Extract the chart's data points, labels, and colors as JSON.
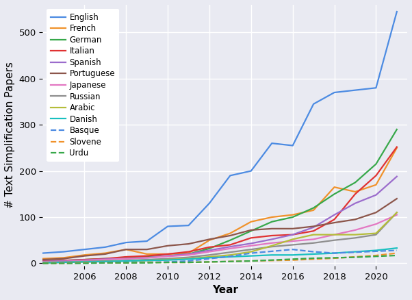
{
  "years": [
    2004,
    2005,
    2006,
    2007,
    2008,
    2009,
    2010,
    2011,
    2012,
    2013,
    2014,
    2015,
    2016,
    2017,
    2018,
    2019,
    2020,
    2021
  ],
  "series": {
    "English": [
      22,
      25,
      30,
      35,
      45,
      48,
      80,
      82,
      130,
      190,
      200,
      260,
      255,
      345,
      370,
      375,
      380,
      545
    ],
    "French": [
      10,
      12,
      18,
      22,
      30,
      20,
      20,
      22,
      50,
      65,
      90,
      100,
      105,
      115,
      165,
      155,
      170,
      250
    ],
    "German": [
      5,
      6,
      8,
      10,
      12,
      14,
      16,
      20,
      32,
      50,
      70,
      90,
      100,
      120,
      150,
      175,
      215,
      290
    ],
    "Italian": [
      5,
      6,
      8,
      10,
      14,
      16,
      20,
      25,
      35,
      40,
      55,
      60,
      62,
      70,
      95,
      150,
      190,
      252
    ],
    "Spanish": [
      4,
      5,
      7,
      9,
      10,
      12,
      16,
      20,
      28,
      36,
      43,
      52,
      62,
      78,
      105,
      130,
      148,
      188
    ],
    "Portuguese": [
      8,
      10,
      16,
      20,
      30,
      30,
      38,
      42,
      52,
      60,
      72,
      75,
      75,
      80,
      88,
      95,
      110,
      140
    ],
    "Japanese": [
      3,
      4,
      6,
      8,
      10,
      12,
      15,
      18,
      25,
      32,
      38,
      44,
      48,
      52,
      62,
      72,
      85,
      105
    ],
    "Russian": [
      2,
      3,
      4,
      5,
      6,
      8,
      10,
      13,
      18,
      24,
      30,
      36,
      40,
      44,
      50,
      55,
      62,
      110
    ],
    "Arabic": [
      1,
      2,
      3,
      4,
      5,
      6,
      8,
      10,
      14,
      18,
      25,
      38,
      52,
      62,
      62,
      62,
      65,
      110
    ],
    "Danish": [
      1,
      2,
      3,
      4,
      5,
      6,
      7,
      9,
      12,
      14,
      16,
      18,
      18,
      20,
      22,
      25,
      28,
      33
    ],
    "Basque": [
      0,
      1,
      1,
      2,
      2,
      2,
      3,
      5,
      10,
      15,
      22,
      26,
      30,
      25,
      22,
      24,
      26,
      28
    ],
    "Slovene": [
      0,
      0,
      1,
      1,
      1,
      2,
      2,
      2,
      3,
      4,
      5,
      6,
      7,
      9,
      11,
      14,
      17,
      22
    ],
    "Urdu": [
      0,
      0,
      0,
      1,
      1,
      1,
      2,
      2,
      3,
      4,
      5,
      7,
      9,
      11,
      12,
      13,
      15,
      17
    ]
  },
  "line_styles": {
    "English": "-",
    "French": "-",
    "German": "-",
    "Italian": "-",
    "Spanish": "-",
    "Portuguese": "-",
    "Japanese": "-",
    "Russian": "-",
    "Arabic": "-",
    "Danish": "-",
    "Basque": "--",
    "Slovene": "--",
    "Urdu": "--"
  },
  "colors": {
    "English": "#4c8be2",
    "French": "#f0922b",
    "German": "#37a84a",
    "Italian": "#e03232",
    "Spanish": "#9b6ccc",
    "Portuguese": "#8c564b",
    "Japanese": "#e377c2",
    "Russian": "#8e8e8e",
    "Arabic": "#b5bd3a",
    "Danish": "#19c0c0",
    "Basque": "#4c8be2",
    "Slovene": "#f0922b",
    "Urdu": "#37a84a"
  },
  "xlabel": "Year",
  "ylabel": "# Text Simplification Papers",
  "xlim": [
    2004,
    2021.5
  ],
  "ylim": [
    -5,
    560
  ],
  "background_color": "#e9eaf2",
  "grid_color": "#ffffff",
  "linewidth": 1.6,
  "legend_fontsize": 8.5,
  "axis_label_fontsize": 11,
  "tick_fontsize": 9.5
}
